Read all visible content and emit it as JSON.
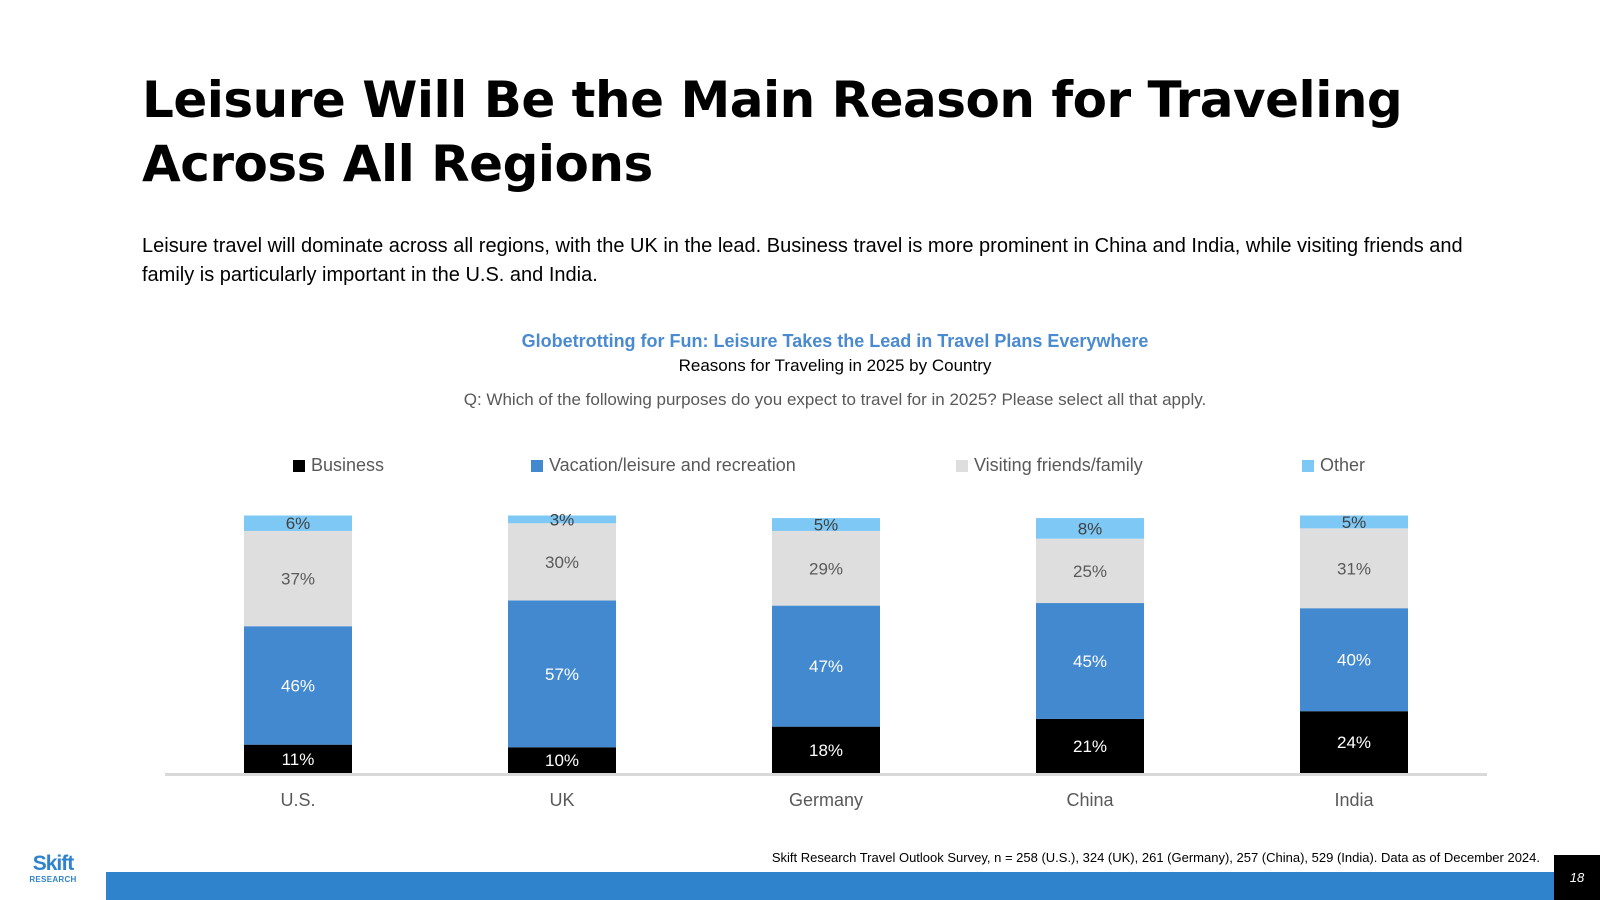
{
  "page": {
    "title": "Leisure Will Be the Main Reason for Traveling Across All Regions",
    "subtitle": "Leisure travel will dominate across all regions, with the UK in the lead. Business travel is more prominent in China and India, while visiting friends and family is particularly important in the U.S. and India.",
    "footnote": "Skift Research Travel Outlook Survey, n = 258 (U.S.), 324 (UK), 261 (Germany), 257 (China), 529 (India). Data as of December 2024.",
    "page_number": "18",
    "logo": {
      "main": "Skift",
      "sub": "RESEARCH"
    }
  },
  "colors": {
    "business": "#000000",
    "leisure": "#4389d0",
    "friends": "#dedede",
    "other": "#7ec8f5",
    "accent": "#2f83cc"
  },
  "chart_data": {
    "type": "bar",
    "stacked": true,
    "title": "Globetrotting for Fun: Leisure Takes the Lead in Travel Plans Everywhere",
    "subtitle": "Reasons for Traveling in 2025 by Country",
    "question": "Q: Which of the following purposes do you expect to travel for in 2025? Please select all that apply.",
    "categories": [
      "U.S.",
      "UK",
      "Germany",
      "China",
      "India"
    ],
    "series": [
      {
        "name": "Business",
        "color": "#000000",
        "label_color": "#ffffff",
        "values": [
          11,
          10,
          18,
          21,
          24
        ],
        "labels": [
          "11%",
          "10%",
          "18%",
          "21%",
          "24%"
        ]
      },
      {
        "name": "Vacation/leisure and recreation",
        "color": "#4389d0",
        "label_color": "#ffffff",
        "values": [
          46,
          57,
          47,
          45,
          40
        ],
        "labels": [
          "46%",
          "57%",
          "47%",
          "45%",
          "40%"
        ]
      },
      {
        "name": "Visiting friends/family",
        "color": "#dedede",
        "label_color": "#595959",
        "values": [
          37,
          30,
          29,
          25,
          31
        ],
        "labels": [
          "37%",
          "30%",
          "29%",
          "25%",
          "31%"
        ]
      },
      {
        "name": "Other",
        "color": "#7ec8f5",
        "label_color": "#404040",
        "values": [
          6,
          3,
          5,
          8,
          5
        ],
        "labels": [
          "6%",
          "3%",
          "5%",
          "8%",
          "5%"
        ]
      }
    ],
    "ylim": [
      0,
      100
    ],
    "legend_position": "top",
    "grid": false
  }
}
